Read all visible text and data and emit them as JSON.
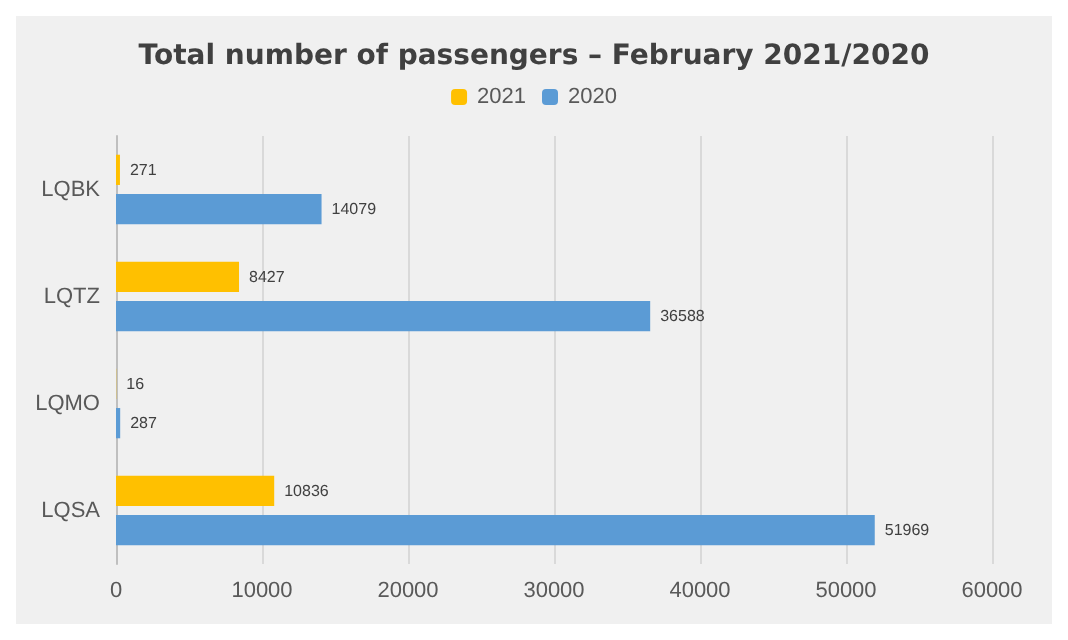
{
  "chart_data": {
    "type": "bar",
    "orientation": "horizontal",
    "title": "Total number of passengers – February 2021/2020",
    "categories": [
      "LQBK",
      "LQTZ",
      "LQMO",
      "LQSA"
    ],
    "series": [
      {
        "name": "2021",
        "color": "#ffc000",
        "values": [
          271,
          8427,
          16,
          10836
        ]
      },
      {
        "name": "2020",
        "color": "#5b9bd5",
        "values": [
          14079,
          36588,
          287,
          51969
        ]
      }
    ],
    "xlim": [
      0,
      60000
    ],
    "xticks": [
      0,
      10000,
      20000,
      30000,
      40000,
      50000,
      60000
    ],
    "grid": "x",
    "legend": "top",
    "data_labels": true
  }
}
